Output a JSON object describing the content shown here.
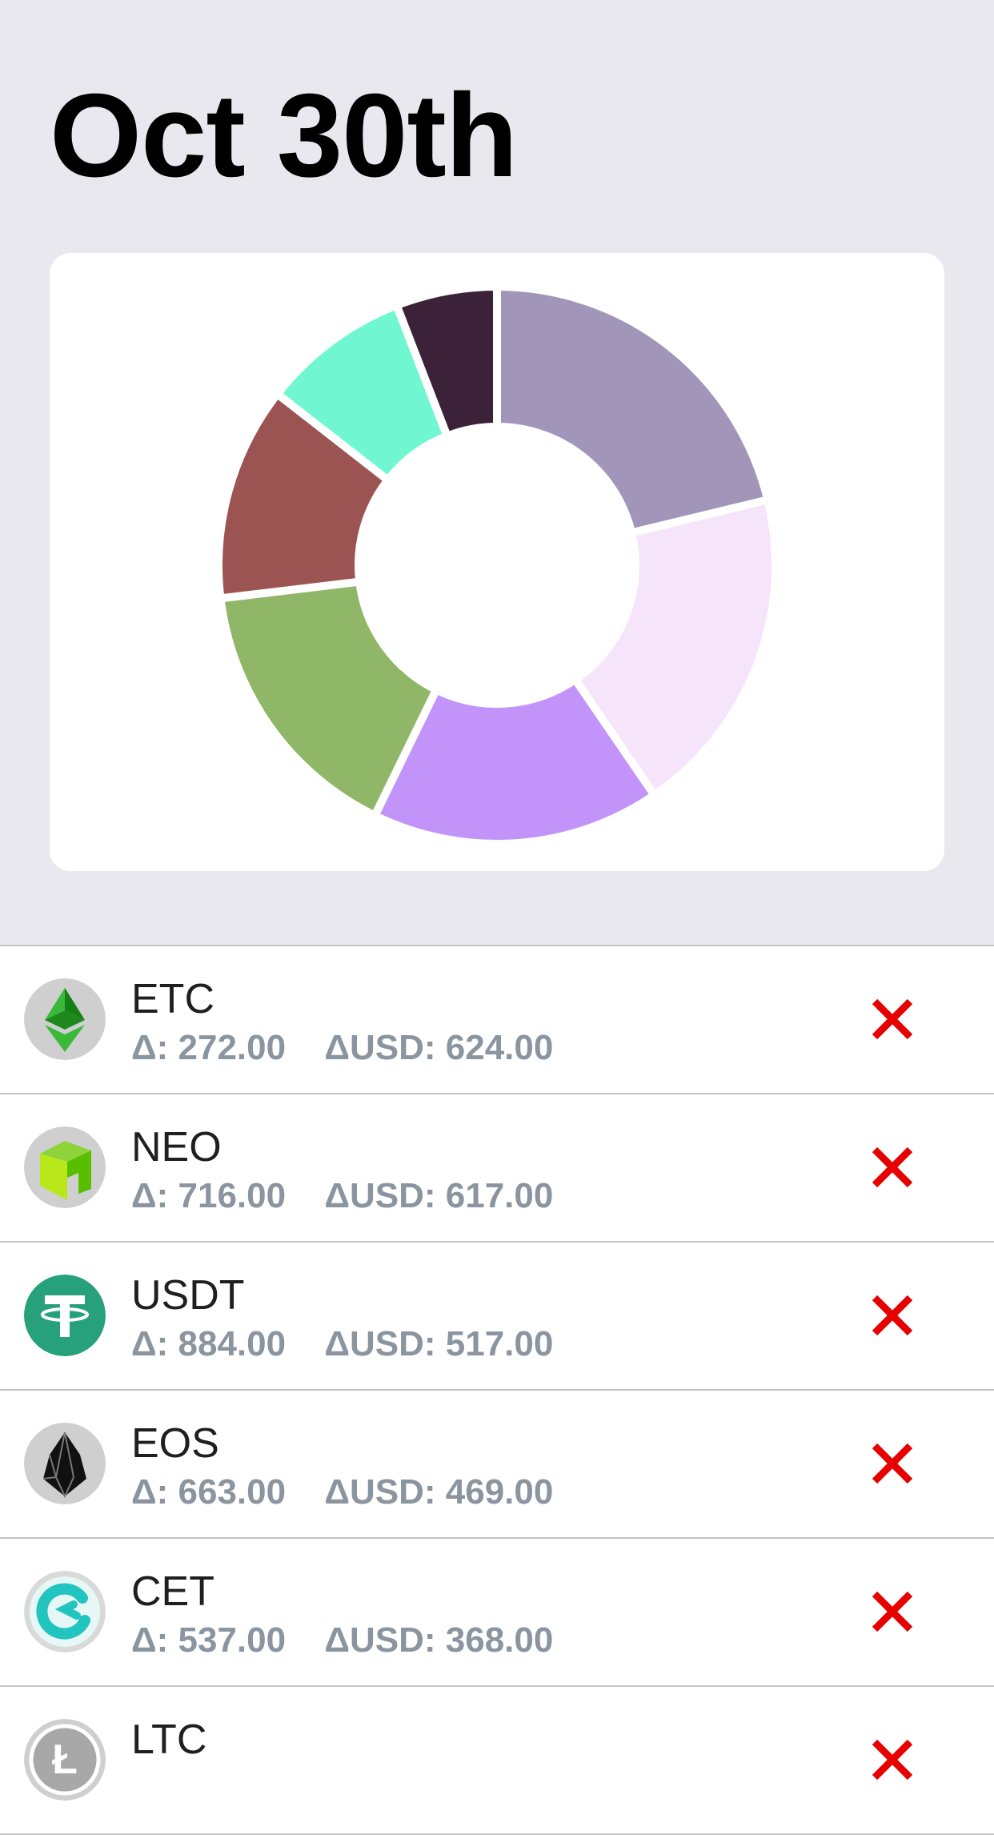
{
  "header": {
    "title": "Oct 30th"
  },
  "chart_data": {
    "type": "pie",
    "variant": "donut",
    "slices": [
      {
        "value": 21.0,
        "color": "#a196ba"
      },
      {
        "value": 19.0,
        "color": "#f6e4fb"
      },
      {
        "value": 16.6,
        "color": "#c294fa"
      },
      {
        "value": 15.7,
        "color": "#90b668"
      },
      {
        "value": 12.3,
        "color": "#9c5452"
      },
      {
        "value": 8.5,
        "color": "#70f7d2"
      },
      {
        "value": 5.8,
        "color": "#3b2238"
      }
    ]
  },
  "list": {
    "delta_label": "Δ:",
    "delta_usd_label": "ΔUSD:",
    "delete_icon": "close-x-icon",
    "delete_color": "#e60000",
    "items": [
      {
        "symbol": "ETC",
        "delta": "272.00",
        "delta_usd": "624.00",
        "icon": "etc-icon"
      },
      {
        "symbol": "NEO",
        "delta": "716.00",
        "delta_usd": "617.00",
        "icon": "neo-icon"
      },
      {
        "symbol": "USDT",
        "delta": "884.00",
        "delta_usd": "517.00",
        "icon": "usdt-icon"
      },
      {
        "symbol": "EOS",
        "delta": "663.00",
        "delta_usd": "469.00",
        "icon": "eos-icon"
      },
      {
        "symbol": "CET",
        "delta": "537.00",
        "delta_usd": "368.00",
        "icon": "cet-icon"
      },
      {
        "symbol": "LTC",
        "delta": "",
        "delta_usd": "",
        "icon": "ltc-icon"
      }
    ]
  }
}
